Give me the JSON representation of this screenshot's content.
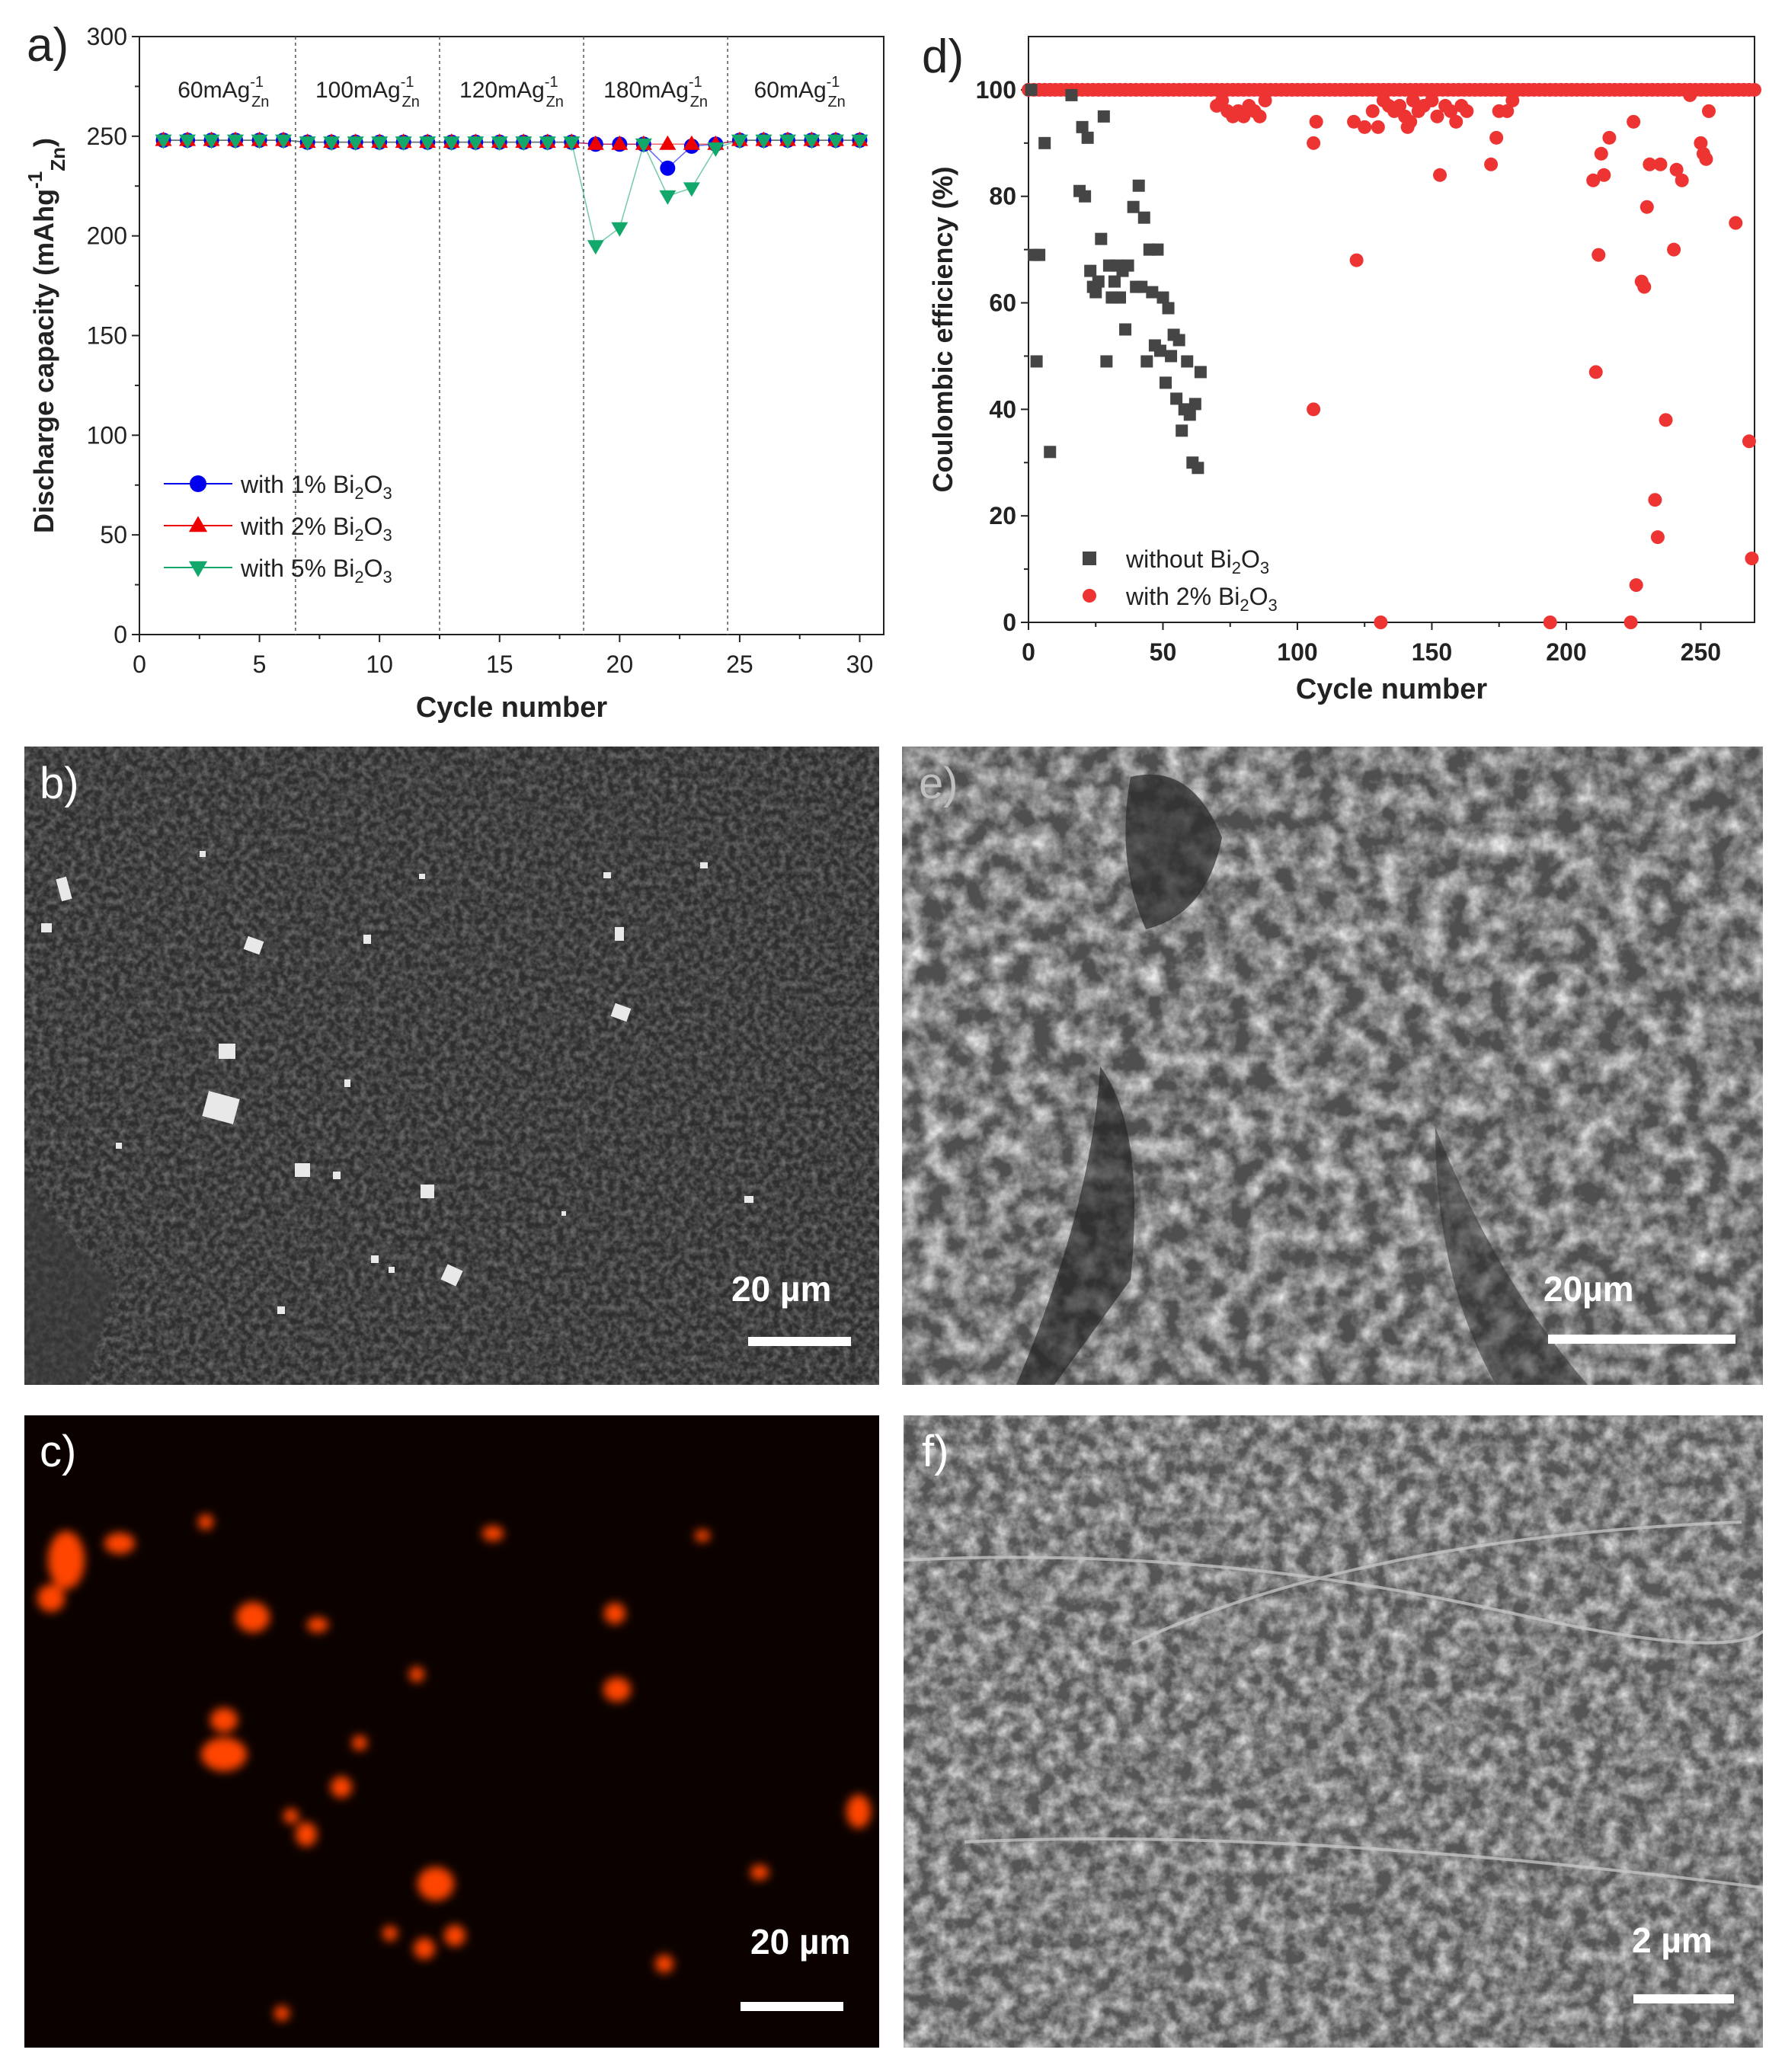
{
  "panel_labels": {
    "a": "a)",
    "b": "b)",
    "c": "c)",
    "d": "d)",
    "e": "e)",
    "f": "f)"
  },
  "colors": {
    "series_1pct": "#0000ee",
    "series_2pct": "#ee0000",
    "series_5pct": "#13a86b",
    "without_bi2o3": "#454545",
    "with_2pct_bi2o3": "#ee3333",
    "edx_map": "#ff4500"
  },
  "chart_data": [
    {
      "id": "a",
      "type": "line",
      "xlabel": "Cycle number",
      "ylabel_html": "Discharge capacity (mAhg<tspan baseline-shift='super' font-size='26'>-1</tspan><tspan baseline-shift='sub' font-size='26'>Zn</tspan>)",
      "xlim": [
        0,
        31
      ],
      "ylim": [
        0,
        300
      ],
      "xticks": [
        0,
        5,
        10,
        15,
        20,
        25,
        30
      ],
      "yticks": [
        0,
        50,
        100,
        150,
        200,
        250,
        300
      ],
      "rate_regions": [
        {
          "label": "60mAg",
          "sup": "-1",
          "sub": "Zn",
          "from": 0.5,
          "to": 6.5
        },
        {
          "label": "100mAg",
          "sup": "-1",
          "sub": "Zn",
          "from": 6.5,
          "to": 12.5
        },
        {
          "label": "120mAg",
          "sup": "-1",
          "sub": "Zn",
          "from": 12.5,
          "to": 18.5
        },
        {
          "label": "180mAg",
          "sup": "-1",
          "sub": "Zn",
          "from": 18.5,
          "to": 24.5
        },
        {
          "label": "60mAg",
          "sup": "-1",
          "sub": "Zn",
          "from": 24.5,
          "to": 30.5
        }
      ],
      "dividers": [
        6.5,
        12.5,
        18.5,
        24.5
      ],
      "x": [
        1,
        2,
        3,
        4,
        5,
        6,
        7,
        8,
        9,
        10,
        11,
        12,
        13,
        14,
        15,
        16,
        17,
        18,
        19,
        20,
        21,
        22,
        23,
        24,
        25,
        26,
        27,
        28,
        29,
        30
      ],
      "series": [
        {
          "name": "with 1% Bi",
          "sub": "2",
          "mid": "O",
          "sub2": "3",
          "marker": "circle",
          "values": [
            248,
            248,
            248,
            248,
            248,
            248,
            247,
            247,
            247,
            247,
            247,
            247,
            247,
            247,
            247,
            247,
            247,
            247,
            246,
            246,
            246,
            234,
            245,
            246,
            248,
            248,
            248,
            248,
            248,
            248
          ]
        },
        {
          "name": "with 2% Bi",
          "sub": "2",
          "mid": "O",
          "sub2": "3",
          "marker": "triangle-up",
          "values": [
            248,
            248,
            248,
            248,
            248,
            248,
            247,
            247,
            247,
            247,
            247,
            247,
            247,
            247,
            247,
            247,
            247,
            247,
            246,
            246,
            246,
            246,
            246,
            246,
            248,
            248,
            248,
            248,
            248,
            248
          ]
        },
        {
          "name": "with 5% Bi",
          "sub": "2",
          "mid": "O",
          "sub2": "3",
          "marker": "triangle-down",
          "values": [
            248,
            248,
            248,
            248,
            248,
            248,
            247,
            247,
            247,
            247,
            247,
            247,
            247,
            247,
            247,
            247,
            247,
            247,
            195,
            204,
            246,
            220,
            224,
            244,
            248,
            248,
            248,
            248,
            248,
            248
          ]
        }
      ]
    },
    {
      "id": "d",
      "type": "scatter",
      "xlabel": "Cycle number",
      "ylabel": "Coulombic efficiency (%)",
      "xlim": [
        0,
        270
      ],
      "ylim": [
        0,
        110
      ],
      "xticks": [
        0,
        50,
        100,
        150,
        200,
        250
      ],
      "yticks": [
        0,
        20,
        40,
        60,
        80,
        100
      ],
      "series": [
        {
          "name": "without Bi",
          "sub": "2",
          "mid": "O",
          "sub2": "3",
          "marker": "square",
          "points": [
            [
              1,
              100
            ],
            [
              2,
              69
            ],
            [
              3,
              49
            ],
            [
              4,
              69
            ],
            [
              6,
              90
            ],
            [
              8,
              32
            ],
            [
              16,
              99
            ],
            [
              19,
              81
            ],
            [
              20,
              93
            ],
            [
              21,
              80
            ],
            [
              22,
              91
            ],
            [
              23,
              66
            ],
            [
              24,
              63
            ],
            [
              25,
              62
            ],
            [
              26,
              64
            ],
            [
              27,
              72
            ],
            [
              28,
              95
            ],
            [
              29,
              49
            ],
            [
              30,
              67
            ],
            [
              31,
              61
            ],
            [
              32,
              64
            ],
            [
              33,
              67
            ],
            [
              34,
              61
            ],
            [
              35,
              66
            ],
            [
              36,
              55
            ],
            [
              37,
              67
            ],
            [
              39,
              78
            ],
            [
              40,
              63
            ],
            [
              41,
              82
            ],
            [
              42,
              63
            ],
            [
              43,
              76
            ],
            [
              44,
              49
            ],
            [
              45,
              70
            ],
            [
              46,
              62
            ],
            [
              47,
              52
            ],
            [
              48,
              70
            ],
            [
              49,
              51
            ],
            [
              50,
              61
            ],
            [
              51,
              45
            ],
            [
              52,
              59
            ],
            [
              53,
              50
            ],
            [
              54,
              54
            ],
            [
              55,
              42
            ],
            [
              56,
              53
            ],
            [
              57,
              36
            ],
            [
              58,
              40
            ],
            [
              59,
              49
            ],
            [
              60,
              39
            ],
            [
              61,
              30
            ],
            [
              62,
              41
            ],
            [
              63,
              29
            ],
            [
              64,
              47
            ]
          ]
        },
        {
          "name": "with 2% Bi",
          "sub": "2",
          "mid": "O",
          "sub2": "3",
          "marker": "circle",
          "points": [
            [
              70,
              97
            ],
            [
              72,
              98
            ],
            [
              74,
              96
            ],
            [
              76,
              95
            ],
            [
              78,
              96
            ],
            [
              80,
              95
            ],
            [
              82,
              97
            ],
            [
              84,
              96
            ],
            [
              86,
              95
            ],
            [
              88,
              98
            ],
            [
              106,
              90
            ],
            [
              107,
              94
            ],
            [
              106,
              40
            ],
            [
              121,
              94
            ],
            [
              122,
              68
            ],
            [
              125,
              93
            ],
            [
              128,
              96
            ],
            [
              130,
              93
            ],
            [
              131,
              0
            ],
            [
              132,
              98
            ],
            [
              134,
              97
            ],
            [
              136,
              96
            ],
            [
              138,
              97
            ],
            [
              140,
              95
            ],
            [
              141,
              93
            ],
            [
              142,
              94
            ],
            [
              143,
              98
            ],
            [
              145,
              96
            ],
            [
              147,
              97
            ],
            [
              150,
              98
            ],
            [
              152,
              95
            ],
            [
              153,
              84
            ],
            [
              155,
              97
            ],
            [
              157,
              96
            ],
            [
              159,
              94
            ],
            [
              161,
              97
            ],
            [
              163,
              96
            ],
            [
              172,
              86
            ],
            [
              174,
              91
            ],
            [
              175,
              96
            ],
            [
              178,
              96
            ],
            [
              180,
              98
            ],
            [
              194,
              0
            ],
            [
              210,
              83
            ],
            [
              211,
              47
            ],
            [
              212,
              69
            ],
            [
              213,
              88
            ],
            [
              214,
              84
            ],
            [
              216,
              91
            ],
            [
              224,
              0
            ],
            [
              225,
              94
            ],
            [
              226,
              7
            ],
            [
              228,
              64
            ],
            [
              229,
              63
            ],
            [
              230,
              78
            ],
            [
              231,
              86
            ],
            [
              233,
              23
            ],
            [
              234,
              16
            ],
            [
              235,
              86
            ],
            [
              237,
              38
            ],
            [
              240,
              70
            ],
            [
              241,
              85
            ],
            [
              243,
              83
            ],
            [
              246,
              99
            ],
            [
              250,
              90
            ],
            [
              251,
              88
            ],
            [
              252,
              87
            ],
            [
              253,
              96
            ],
            [
              263,
              75
            ],
            [
              268,
              34
            ],
            [
              269,
              12
            ]
          ]
        }
      ],
      "series_red_top_from": 0,
      "series_red_top_to": 270,
      "series_red_top_value": 100
    }
  ],
  "scale_bars": {
    "b": "20 µm",
    "c": "20 µm",
    "e": "20µm",
    "f": "2 µm"
  }
}
